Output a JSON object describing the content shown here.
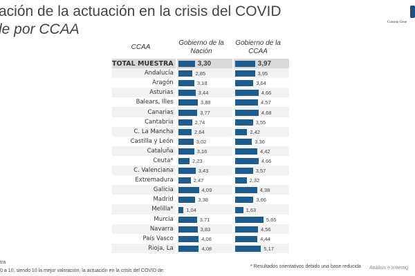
{
  "title": "ación de la actuación en la crisis del COVID",
  "subtitle": "le por CCAA",
  "logo_text": "Consejo Gene",
  "colors": {
    "bar": "#1f5c8b"
  },
  "table": {
    "headers": {
      "ccaa": "CCAA",
      "nacion": "Gobierno de la Nación",
      "ccaa_gov": "Gobierno de la CCAA"
    },
    "rows": [
      {
        "label": "TOTAL MUESTRA",
        "nacion": "3,30",
        "ccaa": "3,97"
      },
      {
        "label": "Andalucía",
        "nacion": "2,85",
        "ccaa": "3,95"
      },
      {
        "label": "Aragón",
        "nacion": "3,18",
        "ccaa": "3,64"
      },
      {
        "label": "Asturias",
        "nacion": "3,44",
        "ccaa": "4,66"
      },
      {
        "label": "Balears, Illes",
        "nacion": "3,88",
        "ccaa": "4,57"
      },
      {
        "label": "Canarias",
        "nacion": "3,77",
        "ccaa": "4,68"
      },
      {
        "label": "Cantabria",
        "nacion": "2,74",
        "ccaa": "3,55"
      },
      {
        "label": "C. La Mancha",
        "nacion": "2,64",
        "ccaa": "2,42"
      },
      {
        "label": "Castilla y León",
        "nacion": "3,02",
        "ccaa": "3,36"
      },
      {
        "label": "Cataluña",
        "nacion": "3,16",
        "ccaa": "4,42"
      },
      {
        "label": "Ceuta*",
        "nacion": "2,23",
        "ccaa": "4,66"
      },
      {
        "label": "C. Valenciana",
        "nacion": "3,43",
        "ccaa": "3,57"
      },
      {
        "label": "Extremadura",
        "nacion": "2,47",
        "ccaa": "2,32"
      },
      {
        "label": "Galicia",
        "nacion": "4,09",
        "ccaa": "4,38"
      },
      {
        "label": "Madrid",
        "nacion": "3,38",
        "ccaa": "3,66"
      },
      {
        "label": "Melilla*",
        "nacion": "1,04",
        "ccaa": "1,63"
      },
      {
        "label": "Murcia",
        "nacion": "3,71",
        "ccaa": "5,65"
      },
      {
        "label": "Navarra",
        "nacion": "3,83",
        "ccaa": "4,56"
      },
      {
        "label": "País Vasco",
        "nacion": "4,06",
        "ccaa": "4,44"
      },
      {
        "label": "Rioja, La",
        "nacion": "4,08",
        "ccaa": "5,17"
      }
    ]
  },
  "footer": {
    "line1": "tra",
    "line2": "0 a 10, siendo 10 la mejor valoración, la actuación en la crisis del COVID de:",
    "note": "* Resultados orientativos debido una base reducida",
    "brand": "Análisis e Investig"
  }
}
